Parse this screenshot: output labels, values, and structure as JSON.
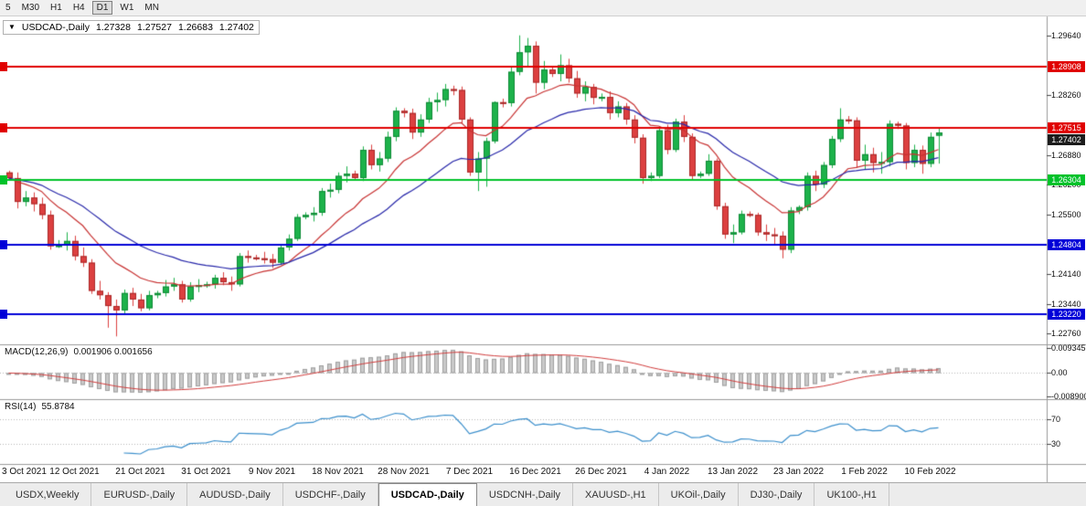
{
  "toolbar": {
    "periods": [
      "5",
      "M30",
      "H1",
      "H4",
      "D1",
      "W1",
      "MN"
    ],
    "active_period": "D1"
  },
  "chart": {
    "title": "USDCAD-,Daily",
    "ohlc": {
      "open": "1.27328",
      "high": "1.27527",
      "low": "1.26683",
      "close": "1.27402"
    },
    "price_axis": {
      "min": 1.2258,
      "max": 1.2995,
      "ticks": [
        {
          "label": "1.29640",
          "value": 1.2964
        },
        {
          "label": "1.28260",
          "value": 1.2826
        },
        {
          "label": "1.26880",
          "value": 1.2688
        },
        {
          "label": "1.26200",
          "value": 1.262
        },
        {
          "label": "1.25500",
          "value": 1.255
        },
        {
          "label": "1.24140",
          "value": 1.2414
        },
        {
          "label": "1.23440",
          "value": 1.2344
        },
        {
          "label": "1.22760",
          "value": 1.2276
        }
      ]
    },
    "levels": [
      {
        "label": "1.28908",
        "value": 1.28908,
        "color": "#e00000"
      },
      {
        "label": "1.27515",
        "value": 1.27515,
        "color": "#e00000"
      },
      {
        "label": "1.26304",
        "value": 1.26304,
        "color": "#00c22a"
      },
      {
        "label": "1.24804",
        "value": 1.24804,
        "color": "#0000d8"
      },
      {
        "label": "1.23220",
        "value": 1.2322,
        "color": "#0000d8"
      }
    ],
    "current_price": {
      "label": "1.27402",
      "value": 1.27402,
      "badge_color": "#1c1c1c"
    },
    "colors": {
      "bull": "#1db24b",
      "bull_dark": "#0f8a36",
      "bear": "#dc4040",
      "bear_dark": "#a92828",
      "ma_fast": "#c83232",
      "ma_slow": "#2828aa",
      "macd_bar": "#c9c9c9",
      "macd_bar_border": "#9f9f9f",
      "macd_signal": "#d23c3c",
      "rsi_line": "#3b8fcc",
      "grid_dotted": "#b8b8b8"
    }
  },
  "chart_data": {
    "type": "candlestick",
    "symbol": "USDCAD-",
    "timeframe": "Daily",
    "x_labels": [
      "3 Oct 2021",
      "12 Oct 2021",
      "21 Oct 2021",
      "31 Oct 2021",
      "9 Nov 2021",
      "18 Nov 2021",
      "28 Nov 2021",
      "7 Dec 2021",
      "16 Dec 2021",
      "26 Dec 2021",
      "4 Jan 2022",
      "13 Jan 2022",
      "23 Jan 2022",
      "1 Feb 2022",
      "10 Feb 2022"
    ],
    "candles_ohlc": [
      [
        1.2648,
        1.2652,
        1.263,
        1.2635
      ],
      [
        1.2635,
        1.2648,
        1.2565,
        1.258
      ],
      [
        1.258,
        1.2605,
        1.257,
        1.259
      ],
      [
        1.259,
        1.2602,
        1.2558,
        1.2575
      ],
      [
        1.2575,
        1.259,
        1.254,
        1.255
      ],
      [
        1.255,
        1.256,
        1.247,
        1.2478
      ],
      [
        1.2478,
        1.2492,
        1.2474,
        1.248
      ],
      [
        1.248,
        1.251,
        1.2468,
        1.249
      ],
      [
        1.249,
        1.2502,
        1.2445,
        1.2455
      ],
      [
        1.2455,
        1.2475,
        1.243,
        1.244
      ],
      [
        1.244,
        1.2448,
        1.2368,
        1.2375
      ],
      [
        1.2375,
        1.2398,
        1.2355,
        1.2365
      ],
      [
        1.2365,
        1.2372,
        1.229,
        1.234
      ],
      [
        1.234,
        1.2355,
        1.227,
        1.233
      ],
      [
        1.233,
        1.2378,
        1.2322,
        1.237
      ],
      [
        1.237,
        1.2382,
        1.234,
        1.2355
      ],
      [
        1.2355,
        1.2368,
        1.2328,
        1.2335
      ],
      [
        1.2335,
        1.2375,
        1.233,
        1.2365
      ],
      [
        1.2365,
        1.2375,
        1.2358,
        1.237
      ],
      [
        1.237,
        1.24,
        1.2362,
        1.2385
      ],
      [
        1.2385,
        1.2405,
        1.2375,
        1.239
      ],
      [
        1.239,
        1.2398,
        1.2348,
        1.2355
      ],
      [
        1.2355,
        1.2395,
        1.235,
        1.2385
      ],
      [
        1.2385,
        1.2402,
        1.2372,
        1.2388
      ],
      [
        1.2388,
        1.2396,
        1.2382,
        1.239
      ],
      [
        1.239,
        1.2412,
        1.238,
        1.2405
      ],
      [
        1.2405,
        1.2418,
        1.2388,
        1.2395
      ],
      [
        1.2395,
        1.2408,
        1.2375,
        1.239
      ],
      [
        1.239,
        1.2462,
        1.2385,
        1.2455
      ],
      [
        1.2455,
        1.2468,
        1.244,
        1.2452
      ],
      [
        1.2452,
        1.2458,
        1.2445,
        1.245
      ],
      [
        1.245,
        1.2465,
        1.2438,
        1.2448
      ],
      [
        1.2448,
        1.246,
        1.2428,
        1.244
      ],
      [
        1.244,
        1.2482,
        1.2435,
        1.2475
      ],
      [
        1.2475,
        1.2505,
        1.2468,
        1.2495
      ],
      [
        1.2495,
        1.2552,
        1.249,
        1.2545
      ],
      [
        1.2545,
        1.2556,
        1.254,
        1.255
      ],
      [
        1.255,
        1.2568,
        1.2535,
        1.2555
      ],
      [
        1.2555,
        1.2612,
        1.2548,
        1.2605
      ],
      [
        1.2605,
        1.2622,
        1.259,
        1.2608
      ],
      [
        1.2608,
        1.2648,
        1.26,
        1.264
      ],
      [
        1.264,
        1.2662,
        1.2625,
        1.2645
      ],
      [
        1.2645,
        1.2652,
        1.263,
        1.2635
      ],
      [
        1.2635,
        1.2708,
        1.2628,
        1.27
      ],
      [
        1.27,
        1.2712,
        1.2655,
        1.2665
      ],
      [
        1.2665,
        1.2695,
        1.265,
        1.268
      ],
      [
        1.268,
        1.2742,
        1.2672,
        1.273
      ],
      [
        1.273,
        1.2798,
        1.272,
        1.279
      ],
      [
        1.279,
        1.2796,
        1.2775,
        1.2785
      ],
      [
        1.2785,
        1.2795,
        1.2725,
        1.274
      ],
      [
        1.274,
        1.2782,
        1.273,
        1.277
      ],
      [
        1.277,
        1.282,
        1.2762,
        1.281
      ],
      [
        1.281,
        1.2832,
        1.2788,
        1.2815
      ],
      [
        1.2815,
        1.2852,
        1.28,
        1.284
      ],
      [
        1.284,
        1.2848,
        1.2826,
        1.2838
      ],
      [
        1.2838,
        1.2846,
        1.276,
        1.277
      ],
      [
        1.277,
        1.2775,
        1.264,
        1.2648
      ],
      [
        1.2648,
        1.2695,
        1.2605,
        1.268
      ],
      [
        1.268,
        1.2728,
        1.2615,
        1.272
      ],
      [
        1.272,
        1.2812,
        1.2715,
        1.281
      ],
      [
        1.281,
        1.2818,
        1.2798,
        1.2808
      ],
      [
        1.2808,
        1.289,
        1.28,
        1.288
      ],
      [
        1.288,
        1.2964,
        1.2872,
        1.2925
      ],
      [
        1.2925,
        1.2958,
        1.289,
        1.294
      ],
      [
        1.294,
        1.295,
        1.283,
        1.2855
      ],
      [
        1.2855,
        1.2905,
        1.284,
        1.2885
      ],
      [
        1.2885,
        1.2892,
        1.2868,
        1.2875
      ],
      [
        1.2875,
        1.292,
        1.2858,
        1.2895
      ],
      [
        1.2895,
        1.291,
        1.2855,
        1.2865
      ],
      [
        1.2865,
        1.2882,
        1.282,
        1.283
      ],
      [
        1.283,
        1.2858,
        1.2812,
        1.2845
      ],
      [
        1.2845,
        1.2852,
        1.2805,
        1.282
      ],
      [
        1.282,
        1.283,
        1.2812,
        1.2822
      ],
      [
        1.2822,
        1.2835,
        1.277,
        1.2785
      ],
      [
        1.2785,
        1.2812,
        1.2775,
        1.28
      ],
      [
        1.28,
        1.2808,
        1.2758,
        1.277
      ],
      [
        1.277,
        1.278,
        1.2715,
        1.2728
      ],
      [
        1.2728,
        1.2736,
        1.2622,
        1.2635
      ],
      [
        1.2635,
        1.2648,
        1.2628,
        1.264
      ],
      [
        1.264,
        1.2752,
        1.2635,
        1.2745
      ],
      [
        1.2745,
        1.2758,
        1.269,
        1.27
      ],
      [
        1.27,
        1.2772,
        1.2695,
        1.2765
      ],
      [
        1.2765,
        1.278,
        1.2718,
        1.273
      ],
      [
        1.273,
        1.2738,
        1.2632,
        1.264
      ],
      [
        1.264,
        1.265,
        1.2635,
        1.2645
      ],
      [
        1.2645,
        1.269,
        1.264,
        1.2675
      ],
      [
        1.2675,
        1.268,
        1.2562,
        1.257
      ],
      [
        1.257,
        1.2578,
        1.2495,
        1.2505
      ],
      [
        1.2505,
        1.2528,
        1.2485,
        1.251
      ],
      [
        1.251,
        1.256,
        1.2505,
        1.2552
      ],
      [
        1.2552,
        1.2558,
        1.2545,
        1.255
      ],
      [
        1.255,
        1.2555,
        1.2502,
        1.251
      ],
      [
        1.251,
        1.2528,
        1.249,
        1.2505
      ],
      [
        1.2505,
        1.252,
        1.248,
        1.2502
      ],
      [
        1.2502,
        1.2512,
        1.245,
        1.247
      ],
      [
        1.247,
        1.2568,
        1.2462,
        1.256
      ],
      [
        1.256,
        1.2572,
        1.2552,
        1.2568
      ],
      [
        1.2568,
        1.2648,
        1.256,
        1.264
      ],
      [
        1.264,
        1.2652,
        1.2605,
        1.262
      ],
      [
        1.262,
        1.2672,
        1.2612,
        1.2665
      ],
      [
        1.2665,
        1.2732,
        1.2658,
        1.2725
      ],
      [
        1.2725,
        1.2796,
        1.2718,
        1.277
      ],
      [
        1.277,
        1.2778,
        1.276,
        1.2768
      ],
      [
        1.2768,
        1.2775,
        1.2658,
        1.2675
      ],
      [
        1.2675,
        1.2712,
        1.2655,
        1.269
      ],
      [
        1.269,
        1.2705,
        1.2648,
        1.267
      ],
      [
        1.267,
        1.2695,
        1.2645,
        1.2672
      ],
      [
        1.2672,
        1.2768,
        1.2662,
        1.276
      ],
      [
        1.276,
        1.2765,
        1.2748,
        1.2756
      ],
      [
        1.2756,
        1.2762,
        1.2655,
        1.267
      ],
      [
        1.267,
        1.2712,
        1.266,
        1.27
      ],
      [
        1.27,
        1.271,
        1.2645,
        1.2668
      ],
      [
        1.2668,
        1.274,
        1.266,
        1.273
      ],
      [
        1.27328,
        1.27527,
        1.26683,
        1.27402
      ]
    ],
    "overlays": [
      {
        "name": "ma-fast",
        "period": 12,
        "color": "#c83232"
      },
      {
        "name": "ma-slow",
        "period": 26,
        "color": "#2828aa"
      }
    ],
    "indicators": [
      {
        "name": "MACD",
        "label": "MACD(12,26,9)",
        "values_label": "0.001906 0.001656",
        "fast": 12,
        "slow": 26,
        "signal": 9,
        "axis_ticks": [
          {
            "label": "0.009345",
            "value": 0.009345
          },
          {
            "label": "0.00",
            "value": 0
          },
          {
            "label": "-0.008900",
            "value": -0.0089
          }
        ],
        "range": {
          "min": -0.0095,
          "max": 0.0105
        }
      },
      {
        "name": "RSI",
        "label": "RSI(14)",
        "value_label": "55.8784",
        "period": 14,
        "axis_ticks": [
          {
            "label": "70",
            "value": 70
          },
          {
            "label": "30",
            "value": 30
          }
        ],
        "range": {
          "min": 0,
          "max": 100
        }
      }
    ]
  },
  "tabs": {
    "active": "USDCAD-,Daily",
    "items": [
      {
        "label": "USDX,Weekly"
      },
      {
        "label": "EURUSD-,Daily"
      },
      {
        "label": "AUDUSD-,Daily"
      },
      {
        "label": "USDCHF-,Daily"
      },
      {
        "label": "USDCAD-,Daily"
      },
      {
        "label": "USDCNH-,Daily"
      },
      {
        "label": "XAUUSD-,H1"
      },
      {
        "label": "UKOil-,Daily"
      },
      {
        "label": "DJ30-,Daily"
      },
      {
        "label": "UK100-,H1"
      }
    ]
  }
}
